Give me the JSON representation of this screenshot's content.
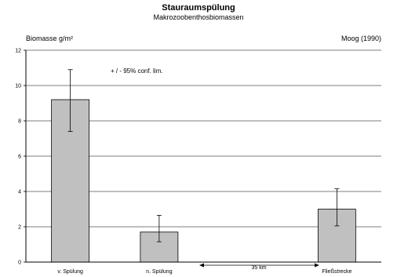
{
  "chart_data": {
    "type": "bar",
    "title": "Stauraumspülung",
    "subtitle": "Makrozoobenthosbiomassen",
    "ylabel": "Biomasse g/m²",
    "source": "Moog (1990)",
    "annotation": "+ / - 95%  conf. lim.",
    "distance_label": "35 km",
    "categories": [
      "v. Spülung",
      "n. Spülung",
      "",
      "Fließstrecke"
    ],
    "values": [
      9.2,
      1.7,
      null,
      3.0
    ],
    "error_low": [
      7.4,
      1.15,
      null,
      2.05
    ],
    "error_high": [
      10.9,
      2.65,
      null,
      4.15
    ],
    "ylim": [
      0,
      12
    ],
    "yticks": [
      0,
      2,
      4,
      6,
      8,
      10,
      12
    ],
    "grid": true,
    "bar_color": "#c0c0c0"
  }
}
